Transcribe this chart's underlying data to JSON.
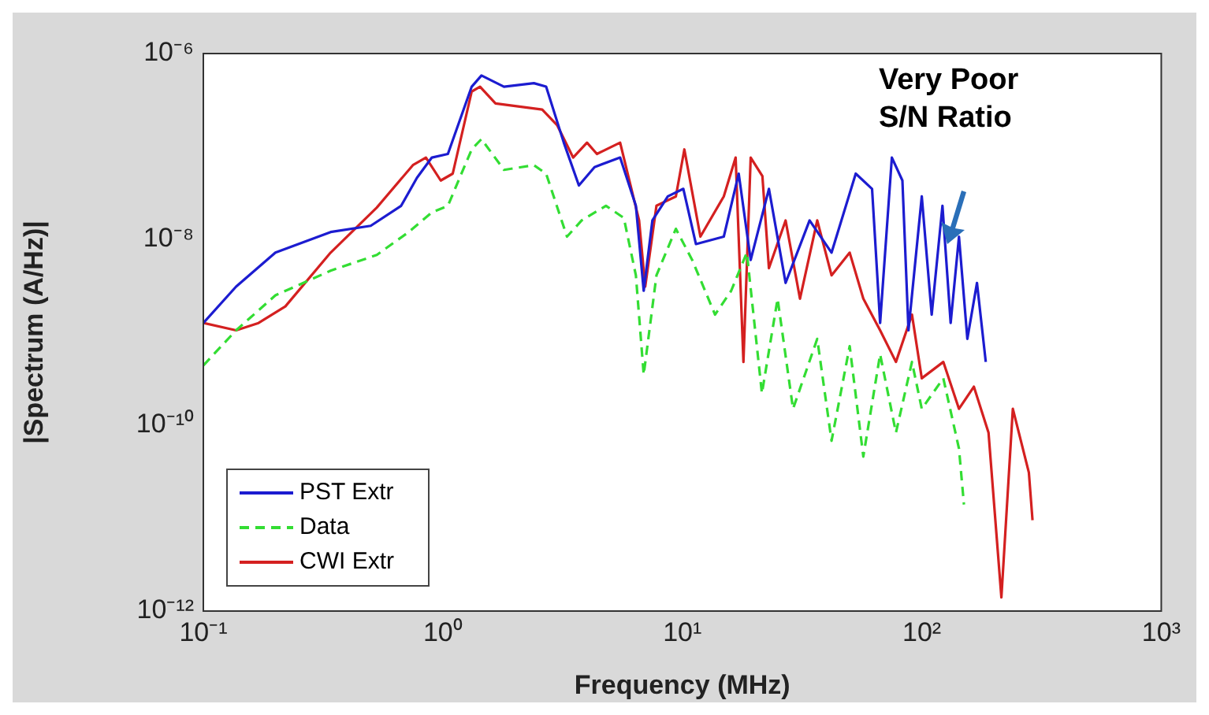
{
  "chart_data": {
    "type": "line",
    "xlabel": "Frequency (MHz)",
    "ylabel": "|Spectrum (A/Hz)|",
    "log": "xy",
    "grid": false,
    "legend": "bottom left",
    "marker": "none",
    "xlim": [
      0.1,
      1000
    ],
    "xticks": [
      {
        "value": 0.1,
        "label": "10⁻¹"
      },
      {
        "value": 1,
        "label": "10⁰"
      },
      {
        "value": 10,
        "label": "10¹"
      },
      {
        "value": 100,
        "label": "10²"
      },
      {
        "value": 1000,
        "label": "10³"
      }
    ],
    "ylim": [
      1e-12,
      1e-06
    ],
    "yticks": [
      {
        "value": 1e-12,
        "label": "10⁻¹²"
      },
      {
        "value": 1e-10,
        "label": "10⁻¹⁰"
      },
      {
        "value": 1e-08,
        "label": "10⁻⁸"
      },
      {
        "value": 1e-06,
        "label": "10⁻⁶"
      }
    ],
    "annotations": [
      "Very Poor\nS/N Ratio"
    ],
    "series": [
      {
        "name": "PST Extr",
        "color": "#1c1cd0",
        "line_style": "solid",
        "x": [
          0.1,
          0.137,
          0.2,
          0.34,
          0.5,
          0.67,
          0.78,
          0.9,
          1.05,
          1.32,
          1.45,
          1.8,
          2.4,
          2.7,
          3.2,
          3.7,
          4.3,
          5.5,
          6.4,
          6.9,
          7.5,
          8.7,
          10.1,
          11.4,
          14.9,
          17.2,
          19.3,
          23,
          27,
          34,
          42,
          53,
          62,
          67,
          75,
          83,
          88,
          100,
          110,
          122,
          132,
          143,
          155,
          170,
          185
        ],
        "values": [
          1.26e-09,
          3.1e-09,
          7.2e-09,
          1.2e-08,
          1.4e-08,
          2.3e-08,
          4.6e-08,
          7.6e-08,
          8.3e-08,
          4.4e-07,
          5.8e-07,
          4.4e-07,
          4.8e-07,
          4.4e-07,
          1.1e-07,
          3.8e-08,
          6e-08,
          7.6e-08,
          2.3e-08,
          2.8e-09,
          1.6e-08,
          2.9e-08,
          3.5e-08,
          8.9e-09,
          1.07e-08,
          5.1e-08,
          6e-09,
          3.5e-08,
          3.4e-09,
          1.6e-08,
          7.2e-09,
          5.1e-08,
          3.5e-08,
          1.26e-09,
          7.6e-08,
          4.3e-08,
          1.05e-09,
          2.9e-08,
          1.55e-09,
          2.3e-08,
          1.26e-09,
          1.07e-08,
          8.5e-10,
          3.4e-09,
          4.8e-10
        ]
      },
      {
        "name": "Data",
        "color": "#33dd33",
        "line_style": "dashed",
        "x": [
          0.1,
          0.137,
          0.2,
          0.34,
          0.53,
          0.72,
          0.9,
          1.05,
          1.32,
          1.45,
          1.8,
          2.4,
          2.7,
          3.3,
          3.8,
          4.8,
          5.7,
          6.4,
          6.9,
          7.8,
          9.4,
          11,
          13.7,
          16,
          18.6,
          21.5,
          25,
          29,
          36.6,
          42,
          50,
          57,
          67,
          78,
          91,
          100,
          123,
          143,
          150
        ],
        "values": [
          4.4e-10,
          1.05e-09,
          2.5e-09,
          4.6e-09,
          6.8e-09,
          1.2e-08,
          1.95e-08,
          2.3e-08,
          9.3e-08,
          1.2e-07,
          5.6e-08,
          6.3e-08,
          5.1e-08,
          1.07e-08,
          1.6e-08,
          2.3e-08,
          1.7e-08,
          4.1e-09,
          3.5e-10,
          4.1e-09,
          1.3e-08,
          6e-09,
          1.55e-09,
          2.8e-09,
          7.2e-09,
          2.2e-10,
          2.3e-09,
          1.5e-10,
          8.5e-10,
          6.8e-11,
          7.1e-10,
          4.6e-11,
          5.8e-10,
          8.3e-11,
          4.8e-10,
          1.5e-10,
          3.2e-10,
          5.6e-11,
          1.4e-11
        ]
      },
      {
        "name": "CWI Extr",
        "color": "#d42020",
        "line_style": "solid",
        "x": [
          0.1,
          0.137,
          0.17,
          0.22,
          0.34,
          0.53,
          0.75,
          0.85,
          0.98,
          1.1,
          1.32,
          1.43,
          1.66,
          2.6,
          3,
          3.5,
          4,
          4.4,
          5.5,
          6.6,
          7,
          7.8,
          9.4,
          10.2,
          11.9,
          14.9,
          16.7,
          18,
          19.3,
          21.6,
          23,
          27,
          31,
          36.6,
          42,
          50,
          57,
          67,
          78,
          91,
          100,
          123,
          143,
          165,
          190,
          215,
          240,
          280,
          290
        ],
        "values": [
          1.26e-09,
          1.05e-09,
          1.26e-09,
          1.9e-09,
          7.2e-09,
          2.2e-08,
          6.3e-08,
          7.6e-08,
          4.3e-08,
          5.1e-08,
          3.9e-07,
          4.4e-07,
          2.9e-07,
          2.5e-07,
          1.7e-07,
          7.6e-08,
          1.1e-07,
          8.3e-08,
          1.1e-07,
          1.6e-08,
          3.1e-09,
          2.3e-08,
          2.9e-08,
          9.3e-08,
          1.07e-08,
          2.9e-08,
          7.6e-08,
          4.8e-10,
          7.6e-08,
          4.8e-08,
          4.9e-09,
          1.6e-08,
          2.3e-09,
          1.6e-08,
          4.1e-09,
          7.2e-09,
          2.3e-09,
          1.05e-09,
          4.8e-10,
          1.55e-09,
          3.2e-10,
          4.8e-10,
          1.5e-10,
          2.6e-10,
          8.3e-11,
          1.4e-12,
          1.5e-10,
          3.1e-11,
          9.5e-12
        ]
      }
    ]
  }
}
